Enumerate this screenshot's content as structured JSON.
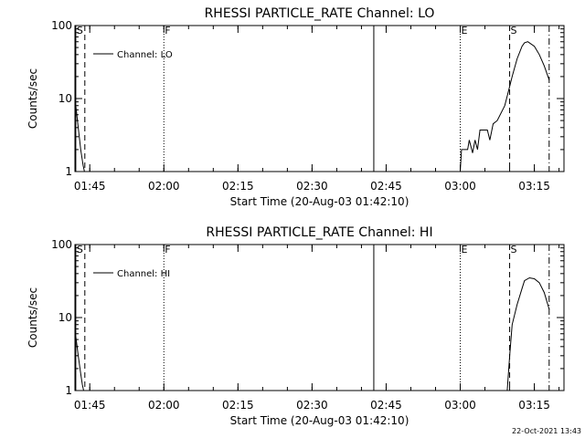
{
  "chart_data": [
    {
      "type": "line",
      "title": "RHESSI PARTICLE_RATE Channel: LO",
      "xlabel": "Start Time (20-Aug-03 01:42:10)",
      "ylabel": "Counts/sec",
      "yscale": "log",
      "ylim": [
        1,
        100
      ],
      "y_ticks": [
        {
          "value": 1,
          "label": "1"
        },
        {
          "value": 10,
          "label": "10"
        },
        {
          "value": 100,
          "label": "100"
        }
      ],
      "xlim": [
        "01:42",
        "03:21"
      ],
      "x_ticks": [
        "01:45",
        "02:00",
        "02:15",
        "02:30",
        "02:45",
        "03:00",
        "03:15"
      ],
      "legend": {
        "label": "Channel: LO",
        "position": "top-left"
      },
      "series": [
        {
          "name": "Channel: LO",
          "points": [
            [
              "01:42:10",
              8
            ],
            [
              "01:42:40",
              4
            ],
            [
              "01:43:10",
              2
            ],
            [
              "01:43:40",
              1.2
            ],
            [
              "01:43:55",
              1
            ],
            [
              "03:00:00",
              1
            ],
            [
              "03:00:15",
              2
            ],
            [
              "03:01:30",
              2
            ],
            [
              "03:01:50",
              2.7
            ],
            [
              "03:02:30",
              1.8
            ],
            [
              "03:03:00",
              2.7
            ],
            [
              "03:03:30",
              2
            ],
            [
              "03:04:00",
              3.7
            ],
            [
              "03:05:30",
              3.7
            ],
            [
              "03:06:00",
              2.7
            ],
            [
              "03:06:40",
              4.5
            ],
            [
              "03:07:30",
              5
            ],
            [
              "03:09:00",
              8
            ],
            [
              "03:09:40",
              12
            ],
            [
              "03:10:30",
              20
            ],
            [
              "03:11:30",
              35
            ],
            [
              "03:12:30",
              52
            ],
            [
              "03:13:00",
              58
            ],
            [
              "03:13:40",
              60
            ],
            [
              "03:15:00",
              52
            ],
            [
              "03:16:00",
              40
            ],
            [
              "03:17:00",
              28
            ],
            [
              "03:18:00",
              18
            ]
          ]
        }
      ],
      "markers": [
        {
          "label": "S",
          "time": "01:42:10",
          "style": "solid"
        },
        {
          "label": "",
          "time": "01:44:00",
          "style": "dashed"
        },
        {
          "label": "F",
          "time": "02:00:00",
          "style": "dotted"
        },
        {
          "label": "",
          "time": "02:42:30",
          "style": "solid"
        },
        {
          "label": "E",
          "time": "03:00:00",
          "style": "dotted"
        },
        {
          "label": "S",
          "time": "03:10:00",
          "style": "dashed"
        },
        {
          "label": "",
          "time": "03:18:00",
          "style": "dashdot"
        }
      ]
    },
    {
      "type": "line",
      "title": "RHESSI PARTICLE_RATE Channel: HI",
      "xlabel": "Start Time (20-Aug-03 01:42:10)",
      "ylabel": "Counts/sec",
      "yscale": "log",
      "ylim": [
        1,
        100
      ],
      "y_ticks": [
        {
          "value": 1,
          "label": "1"
        },
        {
          "value": 10,
          "label": "10"
        },
        {
          "value": 100,
          "label": "100"
        }
      ],
      "xlim": [
        "01:42",
        "03:21"
      ],
      "x_ticks": [
        "01:45",
        "02:00",
        "02:15",
        "02:30",
        "02:45",
        "03:00",
        "03:15"
      ],
      "legend": {
        "label": "Channel: HI",
        "position": "top-left"
      },
      "series": [
        {
          "name": "Channel: HI",
          "points": [
            [
              "01:42:10",
              5.5
            ],
            [
              "01:42:40",
              3
            ],
            [
              "01:43:10",
              1.7
            ],
            [
              "01:43:30",
              1.2
            ],
            [
              "01:43:45",
              1
            ],
            [
              "03:09:30",
              1
            ],
            [
              "03:10:00",
              3
            ],
            [
              "03:10:30",
              8
            ],
            [
              "03:11:30",
              15
            ],
            [
              "03:12:30",
              25
            ],
            [
              "03:13:00",
              32
            ],
            [
              "03:14:00",
              35
            ],
            [
              "03:15:00",
              34
            ],
            [
              "03:16:00",
              30
            ],
            [
              "03:17:00",
              22
            ],
            [
              "03:18:00",
              13
            ]
          ]
        }
      ],
      "markers": [
        {
          "label": "S",
          "time": "01:42:10",
          "style": "solid"
        },
        {
          "label": "",
          "time": "01:44:00",
          "style": "dashed"
        },
        {
          "label": "F",
          "time": "02:00:00",
          "style": "dotted"
        },
        {
          "label": "",
          "time": "02:42:30",
          "style": "solid"
        },
        {
          "label": "E",
          "time": "03:00:00",
          "style": "dotted"
        },
        {
          "label": "S",
          "time": "03:10:00",
          "style": "dashed"
        },
        {
          "label": "",
          "time": "03:18:00",
          "style": "dashdot"
        }
      ]
    }
  ],
  "footer": {
    "timestamp": "22-Oct-2021 13:43"
  }
}
